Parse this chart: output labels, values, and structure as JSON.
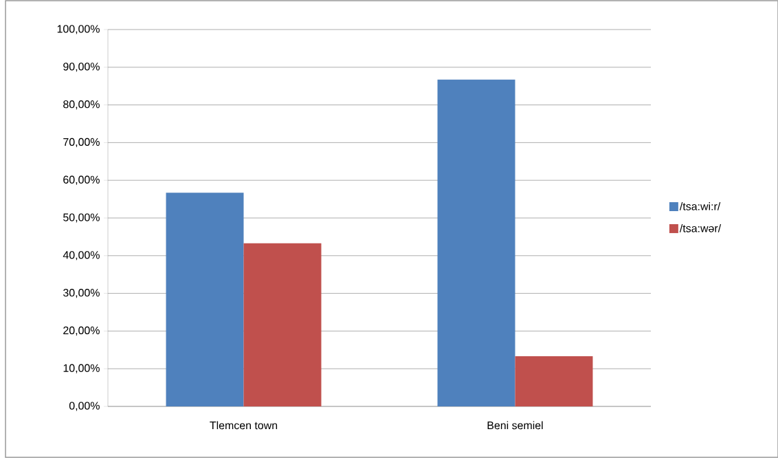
{
  "chart_data": {
    "type": "bar",
    "categories": [
      "Tlemcen town",
      "Beni semiel"
    ],
    "series": [
      {
        "name": "/tsa:wi:r/",
        "color": "#4f81bd",
        "values": [
          56.7,
          86.7
        ]
      },
      {
        "name": "/tsa:wər/",
        "color": "#c0504d",
        "values": [
          43.3,
          13.3
        ]
      }
    ],
    "ylim": [
      0,
      100
    ],
    "yticks": [
      {
        "value": 0,
        "label": "0,00%"
      },
      {
        "value": 10,
        "label": "10,00%"
      },
      {
        "value": 20,
        "label": "20,00%"
      },
      {
        "value": 30,
        "label": "30,00%"
      },
      {
        "value": 40,
        "label": "40,00%"
      },
      {
        "value": 50,
        "label": "50,00%"
      },
      {
        "value": 60,
        "label": "60,00%"
      },
      {
        "value": 70,
        "label": "70,00%"
      },
      {
        "value": 80,
        "label": "80,00%"
      },
      {
        "value": 90,
        "label": "90,00%"
      },
      {
        "value": 100,
        "label": "100,00%"
      }
    ],
    "grid": "y",
    "legend": "right"
  }
}
